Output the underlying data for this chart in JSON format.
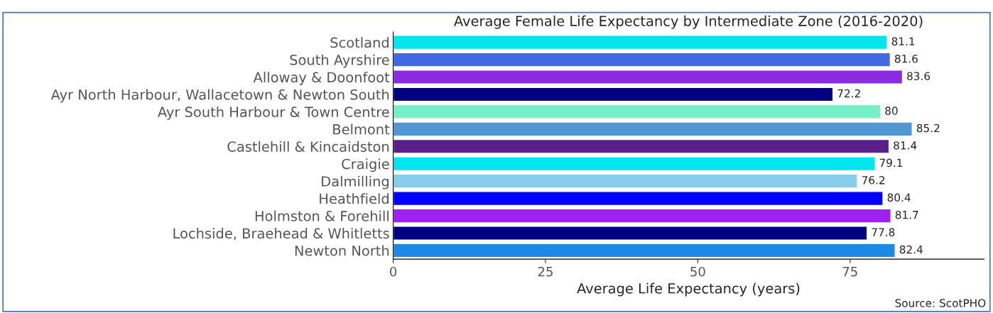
{
  "chart_data": {
    "type": "bar",
    "orientation": "horizontal",
    "title": "Average Female Life Expectancy by Intermediate Zone (2016-2020)",
    "xlabel": "Average Life Expectancy (years)",
    "categories": [
      "Scotland",
      "South Ayrshire",
      "Alloway & Doonfoot",
      "Ayr North Harbour, Wallacetown & Newton South",
      "Ayr South Harbour & Town Centre",
      "Belmont",
      "Castlehill & Kincaidston",
      "Craigie",
      "Dalmilling",
      "Heathfield",
      "Holmston & Forehill",
      "Lochside, Braehead & Whitletts",
      "Newton North"
    ],
    "values": [
      81.1,
      81.6,
      83.6,
      72.2,
      80,
      85.2,
      81.4,
      79.1,
      76.2,
      80.4,
      81.7,
      77.8,
      82.4
    ],
    "colors": [
      "#00e5ee",
      "#4169e1",
      "#8a2be2",
      "#000080",
      "#76eec6",
      "#5197d4",
      "#5b1f8a",
      "#00e5ee",
      "#87ceeb",
      "#0000ff",
      "#a020f0",
      "#000080",
      "#1e88e5"
    ],
    "data_labels": true,
    "xlim": [
      0,
      97
    ],
    "xticks": [
      0,
      25,
      50,
      75
    ],
    "grid": false,
    "annotations": [
      "Source: ScotPHO"
    ]
  }
}
